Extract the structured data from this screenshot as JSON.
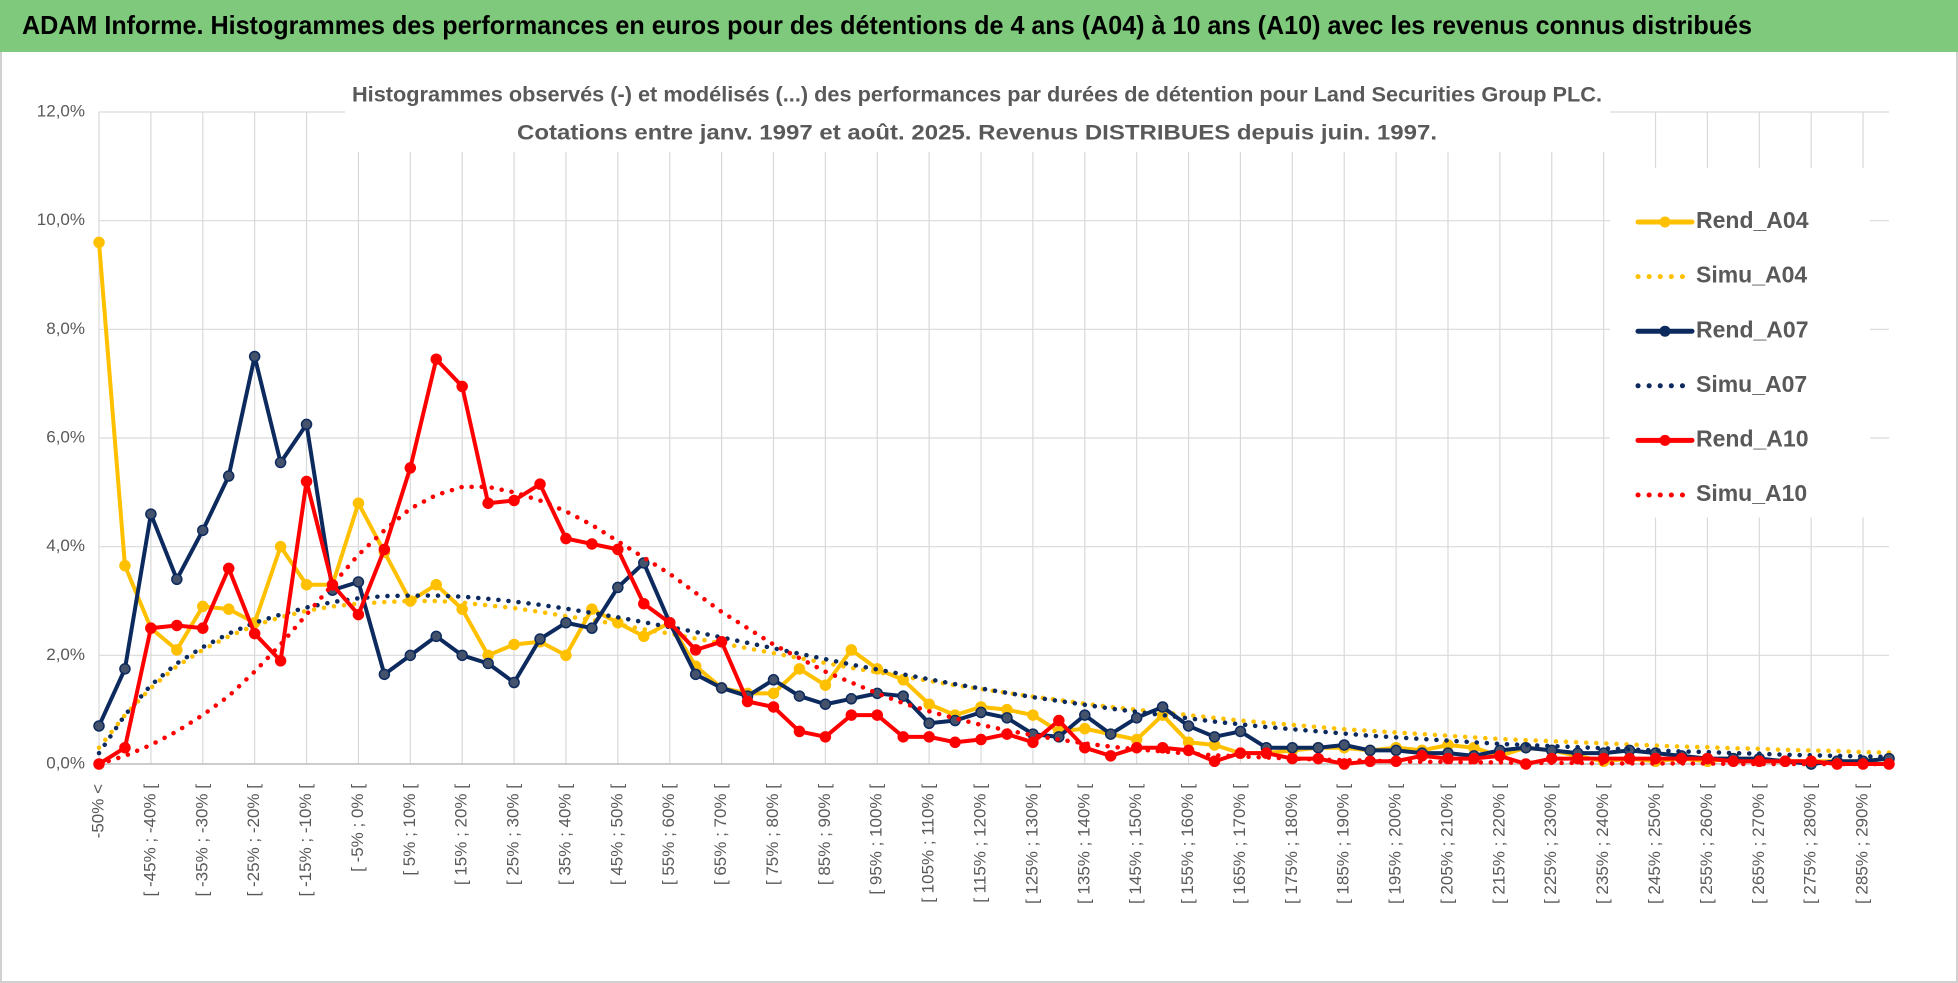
{
  "chart_data": {
    "type": "line",
    "title": "ADAM Informe. Histogrammes des performances en euros pour des détentions de 4 ans (A04) à 10 ans (A10) avec les revenus connus distribués",
    "subtitle": [
      "Histogrammes observés (-) et modélisés (...) des performances par durées de détention pour Land Securities Group PLC.",
      "Cotations entre janv. 1997 et août. 2025. Revenus DISTRIBUES depuis juin. 1997."
    ],
    "categories": [
      "-50% <",
      null,
      "[ -45% ; -40% [",
      null,
      "[ -35% ; -30% [",
      null,
      "[ -25% ; -20% [",
      null,
      "[ -15% ; -10% [",
      null,
      "[ -5% ; 0% [",
      null,
      "[ 5% ; 10% [",
      null,
      "[ 15% ; 20% [",
      null,
      "[ 25% ; 30% [",
      null,
      "[ 35% ; 40% [",
      null,
      "[ 45% ; 50% [",
      null,
      "[ 55% ; 60% [",
      null,
      "[ 65% ; 70% [",
      null,
      "[ 75% ; 80% [",
      null,
      "[ 85% ; 90% [",
      null,
      "[ 95% ; 100% [",
      null,
      "[ 105% ; 110% [",
      null,
      "[ 115% ; 120% [",
      null,
      "[ 125% ; 130% [",
      null,
      "[ 135% ; 140% [",
      null,
      "[ 145% ; 150% [",
      null,
      "[ 155% ; 160% [",
      null,
      "[ 165% ; 170% [",
      null,
      "[ 175% ; 180% [",
      null,
      "[ 185% ; 190% [",
      null,
      "[ 195% ; 200% [",
      null,
      "[ 205% ; 210% [",
      null,
      "[ 215% ; 220% [",
      null,
      "[ 225% ; 230% [",
      null,
      "[ 235% ; 240% [",
      null,
      "[ 245% ; 250% [",
      null,
      "[ 255% ; 260% [",
      null,
      "[ 265% ; 270% [",
      null,
      "[ 275% ; 280% [",
      null,
      "[ 285% ; 290% [",
      null
    ],
    "ylim": [
      0,
      12
    ],
    "yticks": [
      {
        "value": 0,
        "label": "0,0%"
      },
      {
        "value": 2,
        "label": "2,0%"
      },
      {
        "value": 4,
        "label": "4,0%"
      },
      {
        "value": 6,
        "label": "6,0%"
      },
      {
        "value": 8,
        "label": "8,0%"
      },
      {
        "value": 10,
        "label": "10,0%"
      },
      {
        "value": 12,
        "label": "12,0%"
      }
    ],
    "grid": true,
    "legend": "right",
    "series": [
      {
        "name": "Rend_A04",
        "color": "#ffc000",
        "style": "solid",
        "markers": true,
        "values": [
          9.6,
          3.65,
          2.5,
          2.1,
          2.9,
          2.85,
          2.6,
          4.0,
          3.3,
          3.3,
          4.8,
          3.9,
          3.0,
          3.3,
          2.85,
          2.0,
          2.2,
          2.25,
          2.0,
          2.85,
          2.6,
          2.35,
          2.6,
          1.8,
          1.4,
          1.3,
          1.3,
          1.75,
          1.45,
          2.1,
          1.75,
          1.55,
          1.1,
          0.9,
          1.05,
          1.0,
          0.9,
          0.6,
          0.65,
          0.55,
          0.45,
          0.9,
          0.4,
          0.35,
          0.2,
          0.2,
          0.25,
          0.3,
          0.3,
          0.25,
          0.3,
          0.25,
          0.35,
          0.3,
          0.15,
          0.3,
          0.25,
          0.15,
          0.05,
          0.1,
          0.05,
          0.1,
          0.05,
          0.1,
          0.05,
          0.05,
          0.05,
          0.05,
          0.05,
          0.1
        ]
      },
      {
        "name": "Simu_A04",
        "color": "#ffc000",
        "style": "dotted",
        "markers": false,
        "values": [
          0.3,
          0.9,
          1.4,
          1.8,
          2.1,
          2.35,
          2.55,
          2.7,
          2.82,
          2.9,
          2.95,
          2.98,
          3.0,
          3.0,
          2.97,
          2.92,
          2.87,
          2.8,
          2.72,
          2.65,
          2.57,
          2.48,
          2.4,
          2.31,
          2.22,
          2.13,
          2.04,
          1.95,
          1.86,
          1.77,
          1.69,
          1.61,
          1.53,
          1.45,
          1.38,
          1.31,
          1.24,
          1.18,
          1.11,
          1.05,
          1.0,
          0.95,
          0.9,
          0.85,
          0.8,
          0.76,
          0.72,
          0.68,
          0.64,
          0.61,
          0.58,
          0.55,
          0.52,
          0.49,
          0.46,
          0.44,
          0.42,
          0.4,
          0.38,
          0.36,
          0.34,
          0.32,
          0.31,
          0.29,
          0.28,
          0.26,
          0.25,
          0.24,
          0.22,
          0.21
        ]
      },
      {
        "name": "Rend_A07",
        "color": "#0d2a5e",
        "style": "solid",
        "markers": true,
        "values": [
          0.7,
          1.75,
          4.6,
          3.4,
          4.3,
          5.3,
          7.5,
          5.55,
          6.25,
          3.2,
          3.35,
          1.65,
          2.0,
          2.35,
          2.0,
          1.85,
          1.5,
          2.3,
          2.6,
          2.5,
          3.25,
          3.7,
          2.6,
          1.65,
          1.4,
          1.25,
          1.55,
          1.25,
          1.1,
          1.2,
          1.3,
          1.25,
          0.75,
          0.8,
          0.95,
          0.85,
          0.55,
          0.5,
          0.9,
          0.55,
          0.85,
          1.05,
          0.7,
          0.5,
          0.6,
          0.3,
          0.3,
          0.3,
          0.35,
          0.25,
          0.25,
          0.2,
          0.2,
          0.15,
          0.25,
          0.3,
          0.25,
          0.2,
          0.2,
          0.25,
          0.2,
          0.15,
          0.1,
          0.1,
          0.1,
          0.05,
          0.0,
          0.05,
          0.05,
          0.1
        ]
      },
      {
        "name": "Simu_A07",
        "color": "#0d2a5e",
        "style": "dotted",
        "markers": false,
        "values": [
          0.2,
          0.9,
          1.45,
          1.85,
          2.15,
          2.4,
          2.6,
          2.75,
          2.88,
          2.98,
          3.05,
          3.09,
          3.1,
          3.1,
          3.08,
          3.04,
          2.99,
          2.93,
          2.86,
          2.78,
          2.7,
          2.61,
          2.52,
          2.43,
          2.33,
          2.23,
          2.13,
          2.03,
          1.93,
          1.83,
          1.74,
          1.65,
          1.56,
          1.47,
          1.39,
          1.31,
          1.23,
          1.16,
          1.09,
          1.02,
          0.96,
          0.9,
          0.84,
          0.78,
          0.73,
          0.68,
          0.64,
          0.6,
          0.56,
          0.52,
          0.49,
          0.46,
          0.43,
          0.4,
          0.37,
          0.35,
          0.33,
          0.31,
          0.29,
          0.27,
          0.25,
          0.23,
          0.22,
          0.2,
          0.19,
          0.17,
          0.16,
          0.15,
          0.14,
          0.13
        ]
      },
      {
        "name": "Rend_A10",
        "color": "#ff0000",
        "style": "solid",
        "markers": true,
        "values": [
          0.0,
          0.3,
          2.5,
          2.55,
          2.5,
          3.6,
          2.4,
          1.9,
          5.2,
          3.3,
          2.75,
          3.95,
          5.45,
          7.45,
          6.95,
          4.8,
          4.85,
          5.15,
          4.15,
          4.05,
          3.95,
          2.95,
          2.6,
          2.1,
          2.25,
          1.15,
          1.05,
          0.6,
          0.5,
          0.9,
          0.9,
          0.5,
          0.5,
          0.4,
          0.45,
          0.55,
          0.4,
          0.8,
          0.3,
          0.15,
          0.3,
          0.3,
          0.25,
          0.05,
          0.2,
          0.2,
          0.1,
          0.1,
          0.0,
          0.05,
          0.05,
          0.15,
          0.1,
          0.1,
          0.15,
          0.0,
          0.1,
          0.1,
          0.1,
          0.1,
          0.1,
          0.1,
          0.1,
          0.05,
          0.05,
          0.05,
          0.05,
          0.0,
          0.0,
          0.0
        ]
      },
      {
        "name": "Simu_A10",
        "color": "#ff0000",
        "style": "dotted",
        "markers": false,
        "values": [
          0.0,
          0.15,
          0.35,
          0.6,
          0.9,
          1.25,
          1.7,
          2.2,
          2.75,
          3.3,
          3.85,
          4.3,
          4.7,
          4.95,
          5.1,
          5.1,
          5.0,
          4.85,
          4.65,
          4.4,
          4.1,
          3.8,
          3.5,
          3.15,
          2.8,
          2.5,
          2.2,
          1.95,
          1.7,
          1.5,
          1.3,
          1.12,
          0.97,
          0.84,
          0.72,
          0.62,
          0.53,
          0.45,
          0.38,
          0.32,
          0.27,
          0.23,
          0.19,
          0.16,
          0.14,
          0.12,
          0.1,
          0.08,
          0.07,
          0.06,
          0.05,
          0.04,
          0.04,
          0.03,
          0.03,
          0.02,
          0.02,
          0.02,
          0.01,
          0.01,
          0.01,
          0.01,
          0.01,
          0,
          0,
          0,
          0,
          0,
          0,
          0
        ]
      }
    ]
  }
}
